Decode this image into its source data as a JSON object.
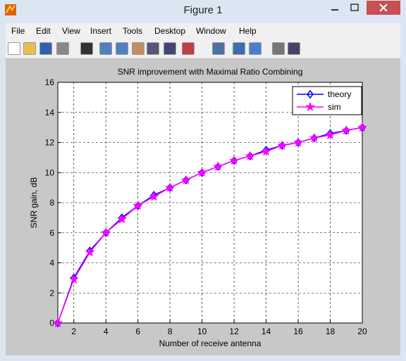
{
  "window": {
    "title": "Figure 1"
  },
  "menu": [
    "File",
    "Edit",
    "View",
    "Insert",
    "Tools",
    "Desktop",
    "Window",
    "Help"
  ],
  "chart_data": {
    "type": "line",
    "title": "SNR improvement with Maximal Ratio Combining",
    "x_label": "Number of receive antenna",
    "y_label": "SNR gain, dB",
    "x": [
      1,
      2,
      3,
      4,
      5,
      6,
      7,
      8,
      9,
      10,
      11,
      12,
      13,
      14,
      15,
      16,
      17,
      18,
      19,
      20
    ],
    "series": [
      {
        "name": "theory",
        "color": "#0000ff",
        "marker": "diamond",
        "values": [
          0,
          3.0,
          4.8,
          6.0,
          7.0,
          7.8,
          8.5,
          9.0,
          9.5,
          10.0,
          10.4,
          10.8,
          11.1,
          11.5,
          11.8,
          12.0,
          12.3,
          12.6,
          12.8,
          13.0
        ]
      },
      {
        "name": "sim",
        "color": "#ff00ff",
        "marker": "star",
        "values": [
          0,
          2.9,
          4.7,
          6.0,
          6.9,
          7.8,
          8.4,
          9.0,
          9.5,
          10.0,
          10.4,
          10.8,
          11.1,
          11.4,
          11.8,
          12.0,
          12.3,
          12.5,
          12.8,
          13.0
        ]
      }
    ],
    "xlim": [
      1,
      20
    ],
    "ylim": [
      0,
      16
    ],
    "xticks": [
      2,
      4,
      6,
      8,
      10,
      12,
      14,
      16,
      18,
      20
    ],
    "yticks": [
      0,
      2,
      4,
      6,
      8,
      10,
      12,
      14,
      16
    ],
    "grid": true,
    "legend": "upper right"
  }
}
